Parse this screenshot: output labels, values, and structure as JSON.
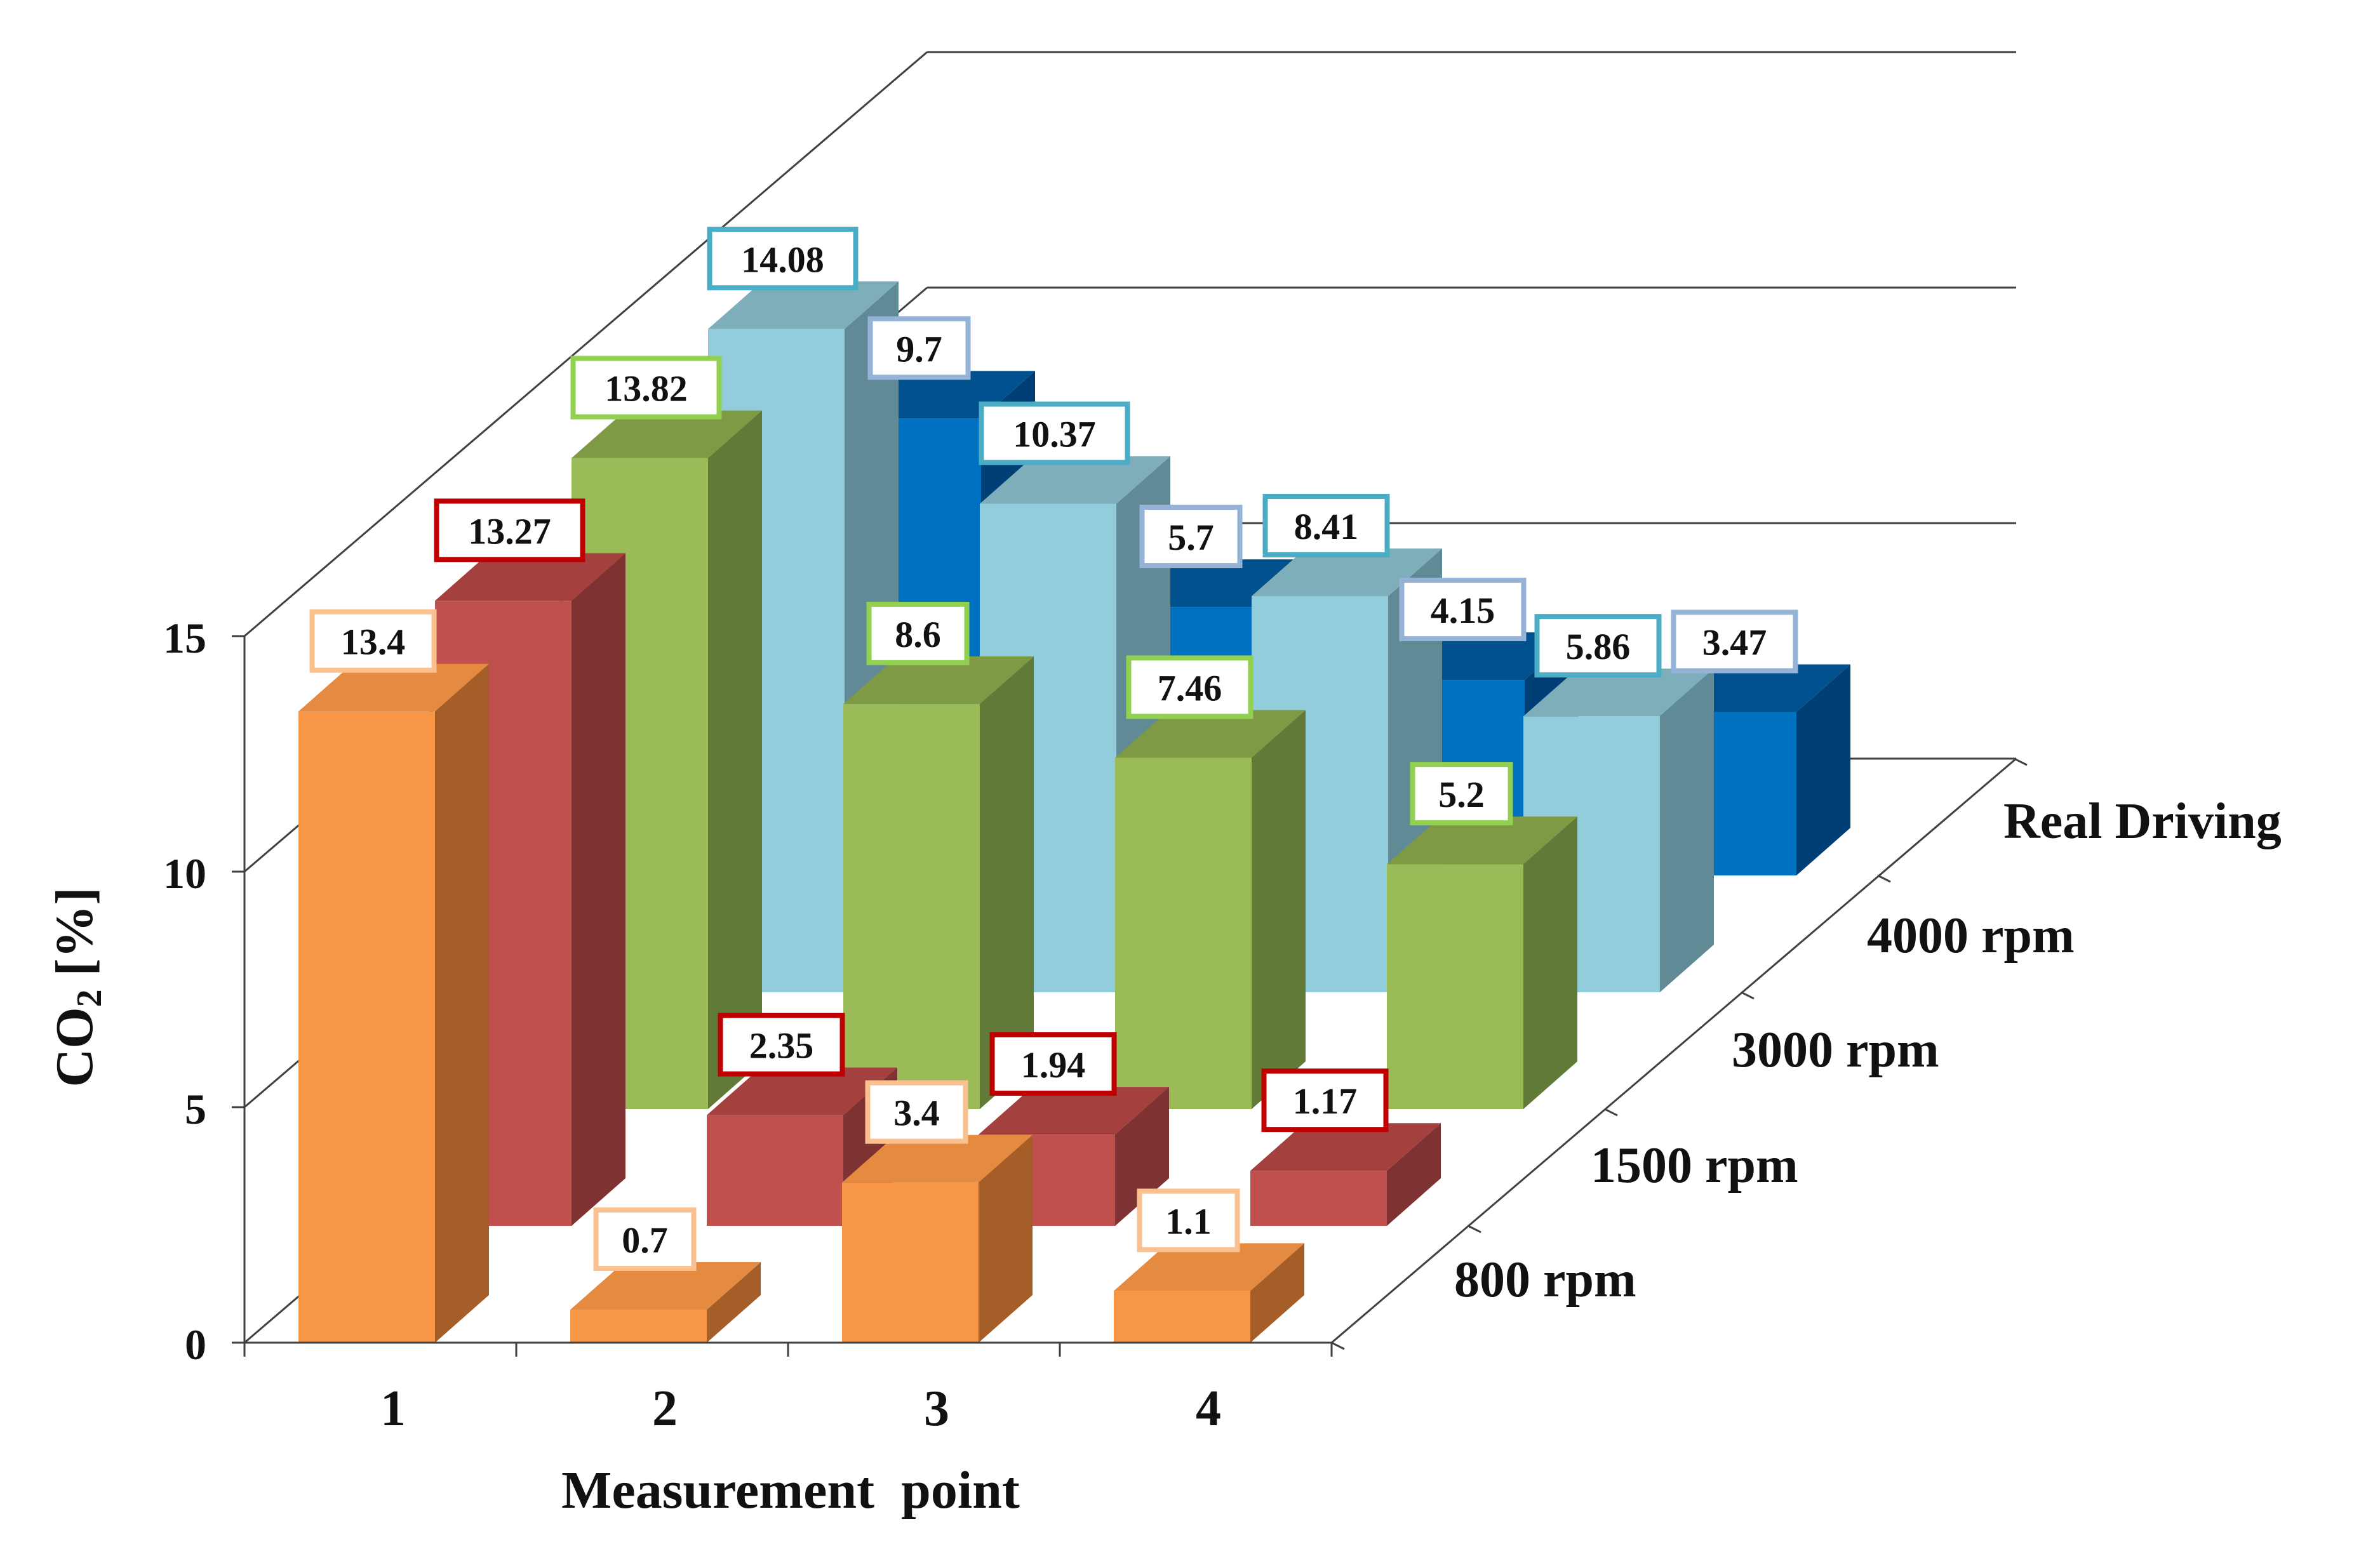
{
  "chart_data": {
    "type": "bar",
    "projection": "3d",
    "title": "",
    "xlabel": "Measurement  point",
    "ylabel_main": "CO",
    "ylabel_sub": "2",
    "ylabel_tail": " [%]",
    "ylim": [
      0,
      15
    ],
    "yticks": [
      "0",
      "5",
      "10",
      "15"
    ],
    "categories": [
      "1",
      "2",
      "3",
      "4"
    ],
    "series": [
      {
        "name": "800 rpm",
        "values": [
          13.4,
          0.7,
          3.4,
          1.1
        ],
        "labels": [
          "13.4",
          "0.7",
          "3.4",
          "1.1"
        ],
        "front": "#F79646",
        "side": "#A55E27",
        "top": "#E58A41",
        "border": "#FAC090"
      },
      {
        "name": "1500 rpm",
        "values": [
          13.27,
          2.35,
          1.94,
          1.17
        ],
        "labels": [
          "13.27",
          "2.35",
          "1.94",
          "1.17"
        ],
        "front": "#C0504D",
        "side": "#7E3231",
        "top": "#A4403E",
        "border": "#C00000"
      },
      {
        "name": "3000 rpm",
        "values": [
          13.82,
          8.6,
          7.46,
          5.2
        ],
        "labels": [
          "13.82",
          "8.6",
          "7.46",
          "5.2"
        ],
        "front": "#9BBB59",
        "side": "#627A38",
        "top": "#7E9A45",
        "border": "#92D050"
      },
      {
        "name": "4000 rpm",
        "values": [
          14.08,
          10.37,
          8.41,
          5.86
        ],
        "labels": [
          "14.08",
          "10.37",
          "8.41",
          "5.86"
        ],
        "front": "#92CDDC",
        "side": "#5F8A96",
        "top": "#7FAEBB",
        "border": "#4BACC6"
      },
      {
        "name": "Real Driving",
        "values": [
          9.7,
          5.7,
          4.15,
          3.47
        ],
        "labels": [
          "9.7",
          "5.7",
          "4.15",
          "3.47"
        ],
        "front": "#0070C0",
        "side": "#003F75",
        "top": "#00518D",
        "border": "#95B3D7"
      }
    ]
  }
}
